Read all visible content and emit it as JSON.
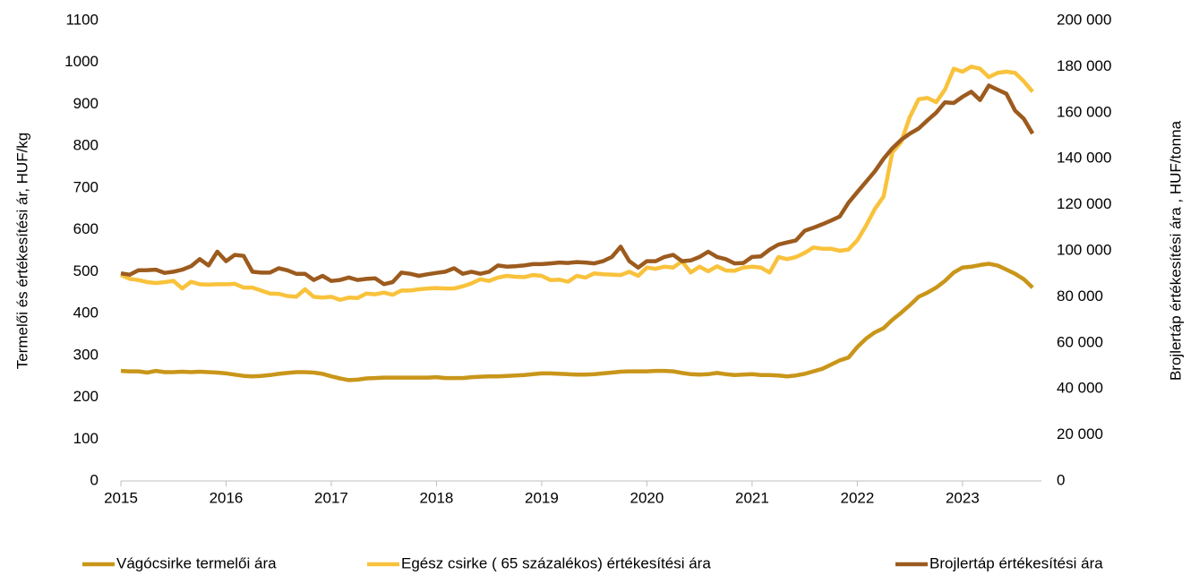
{
  "chart_data": {
    "type": "line",
    "y_label": "Termelői és értékesítési ár, HUF/kg",
    "y2_label": "Brojlertáp értékesítési ára , HUF/tonna",
    "xlim": [
      2015,
      2023.75
    ],
    "xticks": [
      2015,
      2016,
      2017,
      2018,
      2019,
      2020,
      2021,
      2022,
      2023
    ],
    "ylim": [
      0,
      1100
    ],
    "yticks": [
      0,
      100,
      200,
      300,
      400,
      500,
      600,
      700,
      800,
      900,
      1000,
      1100
    ],
    "y2lim": [
      0,
      200000
    ],
    "y2ticks": [
      0,
      {
        "value": 20000,
        "label": "20 000"
      },
      {
        "value": 40000,
        "label": "40 000"
      },
      {
        "value": 60000,
        "label": "60 000"
      },
      {
        "value": 80000,
        "label": "80 000"
      },
      {
        "value": 100000,
        "label": "100 000"
      },
      {
        "value": 120000,
        "label": "120 000"
      },
      {
        "value": 140000,
        "label": "140 000"
      },
      {
        "value": 160000,
        "label": "160 000"
      },
      {
        "value": 180000,
        "label": "180 000"
      },
      {
        "value": 200000,
        "label": "200 000"
      }
    ],
    "legend": "bottom",
    "x": [
      2015,
      2015.083,
      2015.167,
      2015.25,
      2015.333,
      2015.417,
      2015.5,
      2015.583,
      2015.667,
      2015.75,
      2015.833,
      2015.917,
      2016,
      2016.083,
      2016.167,
      2016.25,
      2016.333,
      2016.417,
      2016.5,
      2016.583,
      2016.667,
      2016.75,
      2016.833,
      2016.917,
      2017,
      2017.083,
      2017.167,
      2017.25,
      2017.333,
      2017.417,
      2017.5,
      2017.583,
      2017.667,
      2017.75,
      2017.833,
      2017.917,
      2018,
      2018.083,
      2018.167,
      2018.25,
      2018.333,
      2018.417,
      2018.5,
      2018.583,
      2018.667,
      2018.75,
      2018.833,
      2018.917,
      2019,
      2019.083,
      2019.167,
      2019.25,
      2019.333,
      2019.417,
      2019.5,
      2019.583,
      2019.667,
      2019.75,
      2019.833,
      2019.917,
      2020,
      2020.083,
      2020.167,
      2020.25,
      2020.333,
      2020.417,
      2020.5,
      2020.583,
      2020.667,
      2020.75,
      2020.833,
      2020.917,
      2021,
      2021.083,
      2021.167,
      2021.25,
      2021.333,
      2021.417,
      2021.5,
      2021.583,
      2021.667,
      2021.75,
      2021.833,
      2021.917,
      2022,
      2022.083,
      2022.167,
      2022.25,
      2022.333,
      2022.417,
      2022.5,
      2022.583,
      2022.667,
      2022.75,
      2022.833,
      2022.917,
      2023,
      2023.083,
      2023.167,
      2023.25,
      2023.333,
      2023.417,
      2023.5,
      2023.583,
      2023.667
    ],
    "series": [
      {
        "name": "Vágócsirke termelői ára",
        "color": "#C9961A",
        "values": [
          263,
          262,
          262,
          259,
          263,
          260,
          260,
          261,
          260,
          261,
          260,
          259,
          257,
          254,
          251,
          250,
          251,
          253,
          256,
          258,
          260,
          260,
          259,
          256,
          250,
          245,
          241,
          242,
          245,
          246,
          247,
          247,
          247,
          247,
          247,
          247,
          248,
          246,
          246,
          246,
          248,
          249,
          250,
          250,
          251,
          252,
          253,
          255,
          257,
          257,
          256,
          255,
          254,
          254,
          255,
          257,
          259,
          261,
          262,
          262,
          262,
          263,
          263,
          262,
          258,
          255,
          254,
          255,
          258,
          255,
          253,
          254,
          255,
          253,
          253,
          252,
          250,
          252,
          256,
          262,
          268,
          278,
          288,
          295,
          320,
          340,
          355,
          365,
          385,
          402,
          420,
          440,
          450,
          462,
          478,
          498,
          510,
          512,
          516,
          519,
          515,
          505,
          495,
          482,
          462
        ]
      },
      {
        "name": "Egész csirke ( 65 százalékos) értékesítési ára",
        "color": "#F9C23C",
        "values": [
          492,
          483,
          480,
          475,
          473,
          475,
          478,
          460,
          476,
          470,
          469,
          470,
          470,
          471,
          462,
          462,
          455,
          448,
          447,
          442,
          440,
          458,
          440,
          438,
          440,
          433,
          438,
          437,
          448,
          446,
          450,
          445,
          455,
          455,
          458,
          460,
          461,
          460,
          460,
          465,
          472,
          482,
          478,
          486,
          490,
          488,
          487,
          492,
          490,
          480,
          481,
          476,
          490,
          486,
          496,
          494,
          493,
          492,
          500,
          490,
          510,
          507,
          512,
          510,
          525,
          498,
          512,
          501,
          513,
          503,
          502,
          510,
          512,
          510,
          498,
          535,
          530,
          535,
          545,
          558,
          555,
          555,
          550,
          553,
          575,
          610,
          650,
          680,
          785,
          810,
          870,
          912,
          915,
          905,
          935,
          985,
          978,
          990,
          985,
          965,
          975,
          978,
          975,
          955,
          930
        ]
      },
      {
        "name": "Brojlertáp értékesítési ára",
        "color": "#9C5B1E",
        "axis": "y2",
        "values": [
          90200,
          89600,
          91500,
          91600,
          91800,
          90400,
          90900,
          91800,
          93300,
          96400,
          93600,
          99600,
          95500,
          98200,
          97800,
          90900,
          90500,
          90500,
          92400,
          91500,
          90000,
          90000,
          87300,
          89100,
          86900,
          87300,
          88400,
          87300,
          87800,
          88000,
          85500,
          86400,
          90500,
          90000,
          89100,
          89800,
          90400,
          90900,
          92400,
          90000,
          90900,
          90000,
          90900,
          93600,
          93100,
          93300,
          93600,
          94200,
          94200,
          94500,
          94900,
          94700,
          95100,
          94900,
          94500,
          95500,
          97300,
          101800,
          95500,
          92700,
          95500,
          95500,
          97300,
          98200,
          95500,
          95800,
          97300,
          99600,
          97300,
          96400,
          94500,
          94700,
          97300,
          97600,
          100500,
          102700,
          103600,
          104500,
          108700,
          110000,
          111500,
          113100,
          114900,
          120900,
          125500,
          130000,
          134500,
          140000,
          144500,
          148200,
          150900,
          153100,
          156700,
          160000,
          164500,
          164200,
          166900,
          169100,
          165500,
          171800,
          170000,
          168200,
          160900,
          157300,
          150900
        ]
      }
    ]
  }
}
